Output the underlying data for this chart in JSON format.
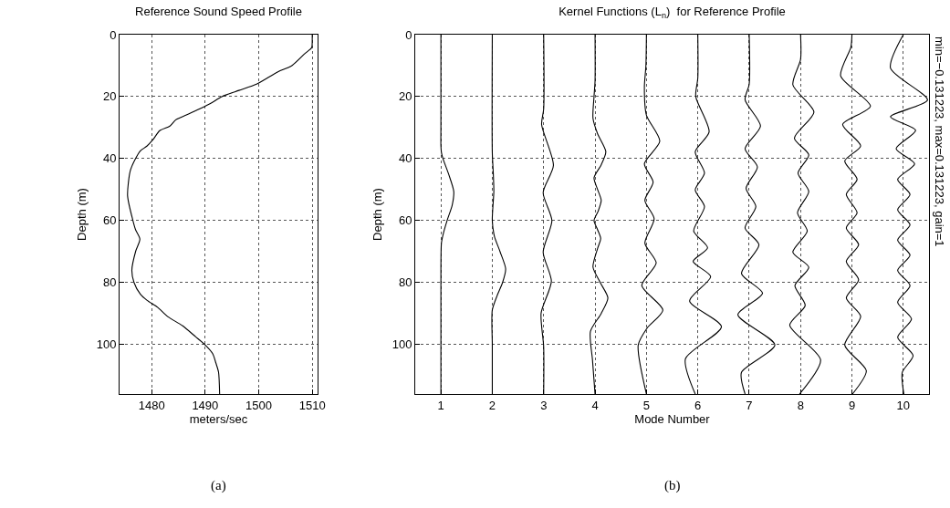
{
  "chart_data": [
    {
      "type": "line",
      "title": "Reference Sound Speed Profile",
      "xlabel": "meters/sec",
      "ylabel": "Depth (m)",
      "series": [
        {
          "color": "#000000",
          "x": [
            1510.0,
            1510.0,
            1509.9,
            1508.7,
            1506.2,
            1503.6,
            1499.6,
            1496.3,
            1493.1,
            1491.2,
            1488.9,
            1486.4,
            1484.5,
            1483.4,
            1481.5,
            1480.2,
            1479.1,
            1477.9,
            1477.0,
            1476.0,
            1475.5,
            1476.5,
            1477.0,
            1477.8,
            1477.0,
            1476.3,
            1476.7,
            1477.9,
            1479.1,
            1481.1,
            1483.0,
            1485.8,
            1488.2,
            1489.9,
            1491.4,
            1492.0,
            1492.5,
            1492.7
          ],
          "values": [
            0,
            2,
            4.2,
            6,
            10,
            12,
            16,
            18,
            20,
            22,
            24,
            26,
            27.5,
            29.5,
            31,
            34,
            36,
            37.5,
            40,
            44,
            52,
            60,
            63,
            66,
            70,
            76,
            80,
            83.8,
            85.7,
            88,
            91,
            94,
            97.5,
            100,
            103,
            106,
            109,
            116
          ]
        }
      ],
      "xlim": [
        1474,
        1511
      ],
      "xticks": [
        1480,
        1490,
        1500,
        1510
      ],
      "ylim": [
        116,
        0
      ],
      "yticks": [
        0,
        20,
        40,
        60,
        80,
        100
      ],
      "grid": true,
      "annotations": [
        "(a)"
      ]
    },
    {
      "type": "line",
      "title": "Kernel Functions (L$_{n}$)  for Reference Profile",
      "xlabel": "Mode Number",
      "ylabel": "Depth (m)",
      "series": [
        {
          "color": "#000000",
          "x": [
            1,
            1,
            1,
            1.01,
            1.04,
            1.15,
            1.25,
            1.22,
            1.12,
            1.05,
            1.01,
            1,
            1
          ],
          "values": [
            0,
            30,
            35.9,
            38,
            40,
            45,
            50.6,
            55,
            60,
            64,
            67.3,
            75,
            116
          ]
        },
        {
          "color": "#000000",
          "x": [
            2,
            2,
            2.02,
            2.03,
            2.01,
            2.0,
            2.04,
            2.15,
            2.26,
            2.2,
            2.1,
            2.0,
            2.0,
            2.0
          ],
          "values": [
            0,
            38,
            45,
            50.6,
            56,
            60,
            65,
            70,
            75.6,
            80,
            84,
            88.9,
            100,
            116
          ]
        },
        {
          "color": "#000000",
          "x": [
            3,
            3,
            2.96,
            3.19,
            2.99,
            3.16,
            2.99,
            3.15,
            2.95,
            3,
            3
          ],
          "values": [
            0,
            24,
            29,
            42.2,
            51,
            60,
            70.2,
            79.6,
            89.9,
            100.7,
            116
          ]
        },
        {
          "color": "#000000",
          "x": [
            4,
            4,
            3.98,
            3.96,
            4.05,
            4.21,
            4.12,
            3.98,
            4.05,
            4.12,
            4.06,
            3.98,
            4.05,
            4.11,
            4.05,
            3.96,
            4.1,
            4.25,
            4.12,
            3.91,
            3.95,
            4.0
          ],
          "values": [
            0,
            15,
            20,
            27,
            32,
            37.8,
            42,
            46.2,
            50,
            53.5,
            57,
            60,
            63,
            65.8,
            69,
            75,
            80,
            85,
            90,
            95.8,
            105,
            116
          ]
        },
        {
          "color": "#000000",
          "x": [
            5,
            4.99,
            4.96,
            5.0,
            5.26,
            4.96,
            5.13,
            4.97,
            5.15,
            4.97,
            5.19,
            4.91,
            5.32,
            5.01,
            4.84,
            5.0
          ],
          "values": [
            0,
            10,
            17,
            26,
            34.4,
            41.7,
            47.6,
            53.5,
            59.4,
            67.3,
            73.7,
            81,
            88.9,
            94.8,
            100.2,
            116
          ]
        },
        {
          "color": "#000000",
          "x": [
            6,
            6,
            5.96,
            6.22,
            5.95,
            6.13,
            5.95,
            6.13,
            5.92,
            6.19,
            5.91,
            6.25,
            5.84,
            6.46,
            5.76,
            5.95
          ],
          "values": [
            0,
            14,
            20,
            31.4,
            37.8,
            44.7,
            50.1,
            55.5,
            63.4,
            68.8,
            73.2,
            78.1,
            86,
            94.3,
            104.6,
            116
          ]
        },
        {
          "color": "#000000",
          "x": [
            7,
            7,
            6.92,
            7.22,
            6.92,
            7.16,
            6.94,
            7.13,
            6.92,
            7.19,
            6.85,
            7.26,
            6.78,
            7.5,
            6.85,
            6.92
          ],
          "values": [
            0,
            16,
            21,
            29.5,
            36.8,
            42.7,
            49.6,
            55.5,
            62.4,
            67.8,
            77.1,
            83.5,
            90.4,
            100.2,
            109,
            116
          ]
        },
        {
          "color": "#000000",
          "x": [
            8,
            8,
            7.85,
            8.26,
            7.88,
            8.16,
            7.95,
            8.16,
            7.94,
            8.13,
            7.85,
            8.16,
            7.89,
            8.09,
            7.79,
            8.39,
            7.98
          ],
          "values": [
            0,
            8,
            16.2,
            25,
            33.4,
            38.8,
            44.7,
            50.6,
            57.5,
            63.4,
            70.2,
            75.1,
            81,
            87.4,
            93.8,
            105,
            116
          ]
        },
        {
          "color": "#000000",
          "x": [
            9,
            8.98,
            8.78,
            9.36,
            8.82,
            9.17,
            8.86,
            9.1,
            8.89,
            9.1,
            8.89,
            9.13,
            8.89,
            9.13,
            8.89,
            9.17,
            8.86,
            9.28,
            9.01
          ],
          "values": [
            0,
            4,
            13.3,
            23.1,
            29,
            35.9,
            40.8,
            46.7,
            51.6,
            57.5,
            62.4,
            67.8,
            73.2,
            79.1,
            85,
            90.9,
            100.2,
            108.5,
            116
          ]
        },
        {
          "color": "#000000",
          "x": [
            10,
            9.75,
            10.47,
            9.75,
            10.24,
            9.86,
            10.22,
            9.89,
            10.13,
            9.89,
            10.13,
            9.89,
            10.13,
            9.89,
            10.13,
            9.89,
            10.16,
            9.89,
            10.19,
            9.98,
            10.01
          ],
          "values": [
            0,
            10.8,
            21.1,
            26.5,
            30.9,
            36.8,
            41.7,
            46.7,
            51.6,
            56.5,
            61.4,
            66.3,
            71.2,
            76.1,
            81,
            86.4,
            91.8,
            97.7,
            103.6,
            109,
            116
          ]
        }
      ],
      "xlim": [
        0.5,
        10.5
      ],
      "xticks": [
        1,
        2,
        3,
        4,
        5,
        6,
        7,
        8,
        9,
        10
      ],
      "ylim": [
        116,
        0
      ],
      "yticks": [
        0,
        20,
        40,
        60,
        80,
        100
      ],
      "grid": true,
      "annotations": [
        "min=−0.131223, max=0.131223, gain=1",
        "(b)"
      ]
    }
  ]
}
